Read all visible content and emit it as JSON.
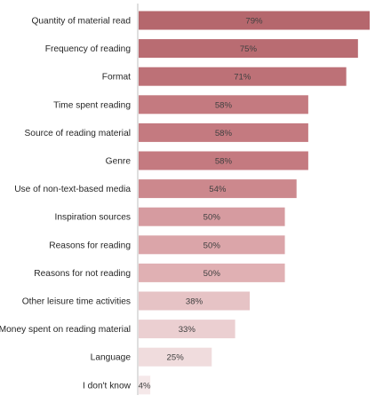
{
  "chart_data": {
    "type": "bar",
    "orientation": "horizontal",
    "categories": [
      "Quantity of material read",
      "Frequency of reading",
      "Format",
      "Time spent reading",
      "Source of reading material",
      "Genre",
      "Use of non-text-based media",
      "Inspiration sources",
      "Reasons for reading",
      "Reasons for not reading",
      "Other leisure time activities",
      "Money spent on reading material",
      "Language",
      "I don't know"
    ],
    "values": [
      79,
      75,
      71,
      58,
      58,
      58,
      54,
      50,
      50,
      50,
      38,
      33,
      25,
      4
    ],
    "value_labels": [
      "79%",
      "75%",
      "71%",
      "58%",
      "58%",
      "58%",
      "54%",
      "50%",
      "50%",
      "50%",
      "38%",
      "33%",
      "25%",
      "4%"
    ],
    "bar_colors": [
      "#b5676d",
      "#b96c72",
      "#bd7177",
      "#c47a80",
      "#c47a80",
      "#c47a80",
      "#cc888d",
      "#d69ba0",
      "#dba5a9",
      "#e0b0b3",
      "#e6c3c5",
      "#ebcfd1",
      "#f0dcdd",
      "#f5e8e9"
    ],
    "xlim": [
      0,
      79
    ],
    "grid": false,
    "legend": "none",
    "title": "",
    "xlabel": "",
    "ylabel": ""
  }
}
